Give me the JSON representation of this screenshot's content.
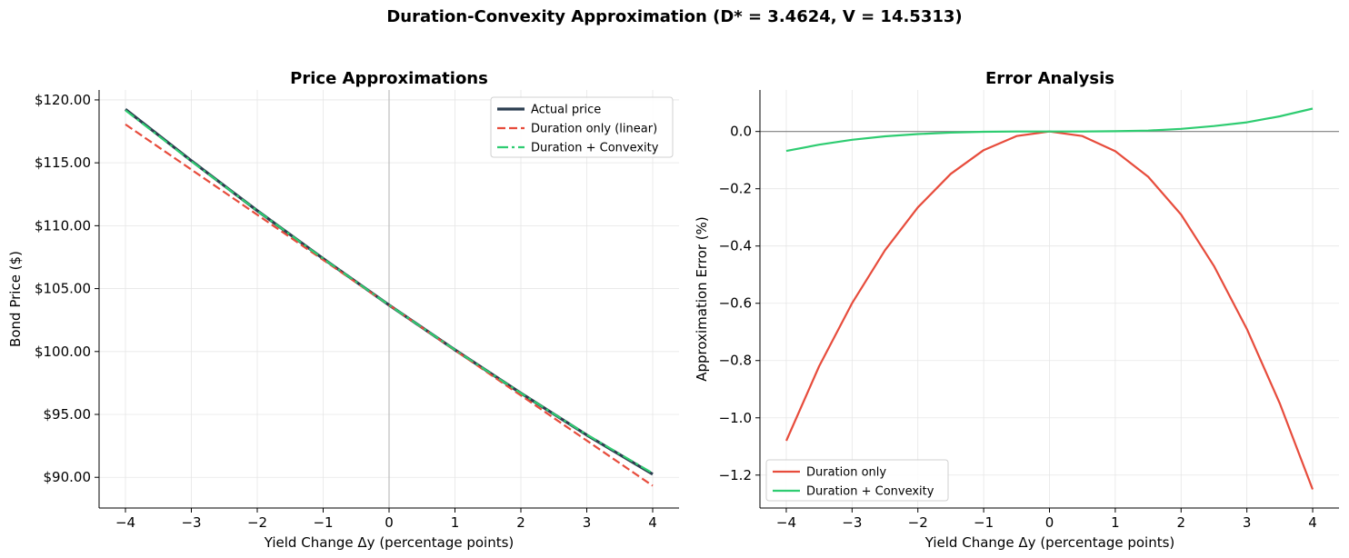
{
  "figure": {
    "suptitle": "Duration-Convexity Approximation (D* = 3.4624, V = 14.5313)"
  },
  "chart_data": [
    {
      "type": "line",
      "title": "Price Approximations",
      "xlabel": "Yield Change Δy (percentage points)",
      "ylabel": "Bond Price ($)",
      "xlim": [
        -4.4,
        4.4
      ],
      "ylim": [
        87.56,
        120.79
      ],
      "xticks": [
        -4,
        -3,
        -2,
        -1,
        0,
        1,
        2,
        3,
        4
      ],
      "xtick_labels": [
        "−4",
        "−3",
        "−2",
        "−1",
        "0",
        "1",
        "2",
        "3",
        "4"
      ],
      "yticks": [
        90,
        95,
        100,
        105,
        110,
        115,
        120
      ],
      "ytick_labels": [
        "$90.00",
        "$95.00",
        "$100.00",
        "$105.00",
        "$110.00",
        "$115.00",
        "$120.00"
      ],
      "grid": true,
      "vline_x": 0,
      "legend_position": "upper right",
      "series": [
        {
          "name": "Actual price",
          "color": "#2c3e50",
          "style": "solid",
          "width": 3.2,
          "x": [
            -4,
            -3,
            -2,
            -1,
            0,
            1,
            2,
            3,
            4
          ],
          "y": [
            119.25,
            115.16,
            111.2,
            107.38,
            103.69,
            100.13,
            96.69,
            93.36,
            90.25
          ]
        },
        {
          "name": "Duration only (linear)",
          "color": "#e74c3c",
          "style": "dashed",
          "width": 2.2,
          "x": [
            -4,
            4
          ],
          "y": [
            118.05,
            89.33
          ]
        },
        {
          "name": "Duration + Convexity",
          "color": "#2ecc71",
          "style": "dashdot",
          "width": 2.2,
          "x": [
            -4,
            -3,
            -2,
            -1,
            0,
            1,
            2,
            3,
            4
          ],
          "y": [
            119.17,
            115.13,
            111.19,
            107.38,
            103.69,
            100.13,
            96.69,
            93.39,
            90.33
          ]
        }
      ]
    },
    {
      "type": "line",
      "title": "Error Analysis",
      "xlabel": "Yield Change Δy (percentage points)",
      "ylabel": "Approximation Error (%)",
      "xlim": [
        -4.4,
        4.4
      ],
      "ylim": [
        -1.315,
        0.145
      ],
      "xticks": [
        -4,
        -3,
        -2,
        -1,
        0,
        1,
        2,
        3,
        4
      ],
      "xtick_labels": [
        "−4",
        "−3",
        "−2",
        "−1",
        "0",
        "1",
        "2",
        "3",
        "4"
      ],
      "yticks": [
        0.0,
        -0.2,
        -0.4,
        -0.6,
        -0.8,
        -1.0,
        -1.2
      ],
      "ytick_labels": [
        "0.0",
        "−0.2",
        "−0.4",
        "−0.6",
        "−0.8",
        "−1.0",
        "−1.2"
      ],
      "grid": true,
      "hline_y": 0,
      "legend_position": "lower left",
      "series": [
        {
          "name": "Duration only",
          "color": "#e74c3c",
          "style": "solid",
          "width": 2.2,
          "x": [
            -4,
            -3.5,
            -3,
            -2.5,
            -2,
            -1.5,
            -1,
            -0.5,
            0,
            0.5,
            1,
            1.5,
            2,
            2.5,
            3,
            3.5,
            4
          ],
          "y": [
            -1.08,
            -0.82,
            -0.6,
            -0.415,
            -0.265,
            -0.148,
            -0.065,
            -0.016,
            0,
            -0.016,
            -0.069,
            -0.158,
            -0.29,
            -0.47,
            -0.69,
            -0.95,
            -1.25
          ]
        },
        {
          "name": "Duration + Convexity",
          "color": "#2ecc71",
          "style": "solid",
          "width": 2.2,
          "x": [
            -4,
            -3.5,
            -3,
            -2.5,
            -2,
            -1.5,
            -1,
            -0.5,
            0,
            0.5,
            1,
            1.5,
            2,
            2.5,
            3,
            3.5,
            4
          ],
          "y": [
            -0.068,
            -0.046,
            -0.029,
            -0.017,
            -0.009,
            -0.004,
            -0.001,
            0,
            0,
            0,
            0.001,
            0.003,
            0.009,
            0.019,
            0.032,
            0.053,
            0.08
          ]
        }
      ]
    }
  ]
}
